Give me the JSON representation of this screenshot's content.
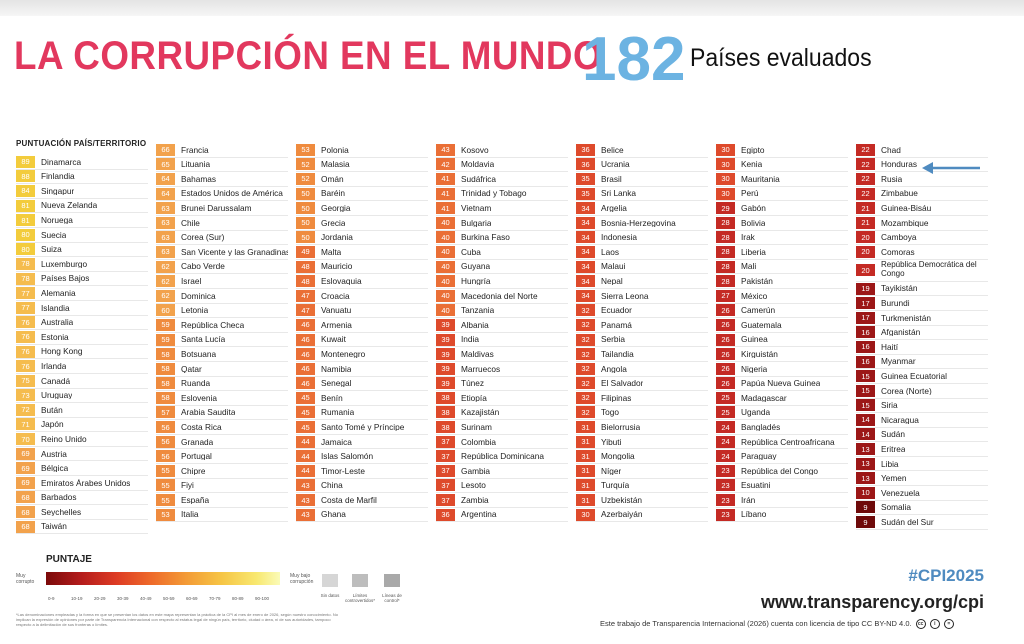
{
  "header": {
    "title": "LA CORRUPCIÓN EN EL MUNDO",
    "count": "182",
    "count_label": "Países evaluados"
  },
  "legend_header": "PUNTUACIÓN PAÍS/TERRITORIO",
  "columns": [
    [
      {
        "score": 89,
        "name": "Dinamarca"
      },
      {
        "score": 88,
        "name": "Finlandia"
      },
      {
        "score": 84,
        "name": "Singapur"
      },
      {
        "score": 81,
        "name": "Nueva Zelanda"
      },
      {
        "score": 81,
        "name": "Noruega"
      },
      {
        "score": 80,
        "name": "Suecia"
      },
      {
        "score": 80,
        "name": "Suiza"
      },
      {
        "score": 78,
        "name": "Luxemburgo"
      },
      {
        "score": 78,
        "name": "Países Bajos"
      },
      {
        "score": 77,
        "name": "Alemania"
      },
      {
        "score": 77,
        "name": "Islandia"
      },
      {
        "score": 76,
        "name": "Australia"
      },
      {
        "score": 76,
        "name": "Estonia"
      },
      {
        "score": 76,
        "name": "Hong Kong"
      },
      {
        "score": 76,
        "name": "Irlanda"
      },
      {
        "score": 75,
        "name": "Canadá"
      },
      {
        "score": 73,
        "name": "Uruguay"
      },
      {
        "score": 72,
        "name": "Bután"
      },
      {
        "score": 71,
        "name": "Japón"
      },
      {
        "score": 70,
        "name": "Reino Unido"
      },
      {
        "score": 69,
        "name": "Austria"
      },
      {
        "score": 69,
        "name": "Bélgica"
      },
      {
        "score": 69,
        "name": "Emiratos Árabes Unidos"
      },
      {
        "score": 68,
        "name": "Barbados"
      },
      {
        "score": 68,
        "name": "Seychelles"
      },
      {
        "score": 68,
        "name": "Taiwán"
      }
    ],
    [
      {
        "score": 66,
        "name": "Francia"
      },
      {
        "score": 65,
        "name": "Lituania"
      },
      {
        "score": 64,
        "name": "Bahamas"
      },
      {
        "score": 64,
        "name": "Estados Unidos de América"
      },
      {
        "score": 63,
        "name": "Brunei Darussalam"
      },
      {
        "score": 63,
        "name": "Chile"
      },
      {
        "score": 63,
        "name": "Corea (Sur)"
      },
      {
        "score": 63,
        "name": "San Vicente y las Granadinas"
      },
      {
        "score": 62,
        "name": "Cabo Verde"
      },
      {
        "score": 62,
        "name": "Israel"
      },
      {
        "score": 62,
        "name": "Dominica"
      },
      {
        "score": 60,
        "name": "Letonia"
      },
      {
        "score": 59,
        "name": "República Checa"
      },
      {
        "score": 59,
        "name": "Santa Lucía"
      },
      {
        "score": 58,
        "name": "Botsuana"
      },
      {
        "score": 58,
        "name": "Qatar"
      },
      {
        "score": 58,
        "name": "Ruanda"
      },
      {
        "score": 58,
        "name": "Eslovenia"
      },
      {
        "score": 57,
        "name": "Arabia Saudita"
      },
      {
        "score": 56,
        "name": "Costa Rica"
      },
      {
        "score": 56,
        "name": "Granada"
      },
      {
        "score": 56,
        "name": "Portugal"
      },
      {
        "score": 55,
        "name": "Chipre"
      },
      {
        "score": 55,
        "name": "Fiyi"
      },
      {
        "score": 55,
        "name": "España"
      },
      {
        "score": 53,
        "name": "Italia"
      }
    ],
    [
      {
        "score": 53,
        "name": "Polonia"
      },
      {
        "score": 52,
        "name": "Malasia"
      },
      {
        "score": 52,
        "name": "Omán"
      },
      {
        "score": 50,
        "name": "Baréin"
      },
      {
        "score": 50,
        "name": "Georgia"
      },
      {
        "score": 50,
        "name": "Grecia"
      },
      {
        "score": 50,
        "name": "Jordania"
      },
      {
        "score": 49,
        "name": "Malta"
      },
      {
        "score": 48,
        "name": "Mauricio"
      },
      {
        "score": 48,
        "name": "Eslovaquia"
      },
      {
        "score": 47,
        "name": "Croacia"
      },
      {
        "score": 47,
        "name": "Vanuatu"
      },
      {
        "score": 46,
        "name": "Armenia"
      },
      {
        "score": 46,
        "name": "Kuwait"
      },
      {
        "score": 46,
        "name": "Montenegro"
      },
      {
        "score": 46,
        "name": "Namibia"
      },
      {
        "score": 46,
        "name": "Senegal"
      },
      {
        "score": 45,
        "name": "Benín"
      },
      {
        "score": 45,
        "name": "Rumania"
      },
      {
        "score": 45,
        "name": "Santo Tomé y Príncipe"
      },
      {
        "score": 44,
        "name": "Jamaica"
      },
      {
        "score": 44,
        "name": "Islas Salomón"
      },
      {
        "score": 44,
        "name": "Timor-Leste"
      },
      {
        "score": 43,
        "name": "China"
      },
      {
        "score": 43,
        "name": "Costa de Marfil"
      },
      {
        "score": 43,
        "name": "Ghana"
      }
    ],
    [
      {
        "score": 43,
        "name": "Kosovo"
      },
      {
        "score": 42,
        "name": "Moldavia"
      },
      {
        "score": 41,
        "name": "Sudáfrica"
      },
      {
        "score": 41,
        "name": "Trinidad y Tobago"
      },
      {
        "score": 41,
        "name": "Vietnam"
      },
      {
        "score": 40,
        "name": "Bulgaria"
      },
      {
        "score": 40,
        "name": "Burkina Faso"
      },
      {
        "score": 40,
        "name": "Cuba"
      },
      {
        "score": 40,
        "name": "Guyana"
      },
      {
        "score": 40,
        "name": "Hungría"
      },
      {
        "score": 40,
        "name": "Macedonia del Norte"
      },
      {
        "score": 40,
        "name": "Tanzania"
      },
      {
        "score": 39,
        "name": "Albania"
      },
      {
        "score": 39,
        "name": "India"
      },
      {
        "score": 39,
        "name": "Maldivas"
      },
      {
        "score": 39,
        "name": "Marruecos"
      },
      {
        "score": 39,
        "name": "Túnez"
      },
      {
        "score": 38,
        "name": "Etiopía"
      },
      {
        "score": 38,
        "name": "Kazajistán"
      },
      {
        "score": 38,
        "name": "Surinam"
      },
      {
        "score": 37,
        "name": "Colombia"
      },
      {
        "score": 37,
        "name": "República Dominicana"
      },
      {
        "score": 37,
        "name": "Gambia"
      },
      {
        "score": 37,
        "name": "Lesoto"
      },
      {
        "score": 37,
        "name": "Zambia"
      },
      {
        "score": 36,
        "name": "Argentina"
      }
    ],
    [
      {
        "score": 36,
        "name": "Belice"
      },
      {
        "score": 36,
        "name": "Ucrania"
      },
      {
        "score": 35,
        "name": "Brasil"
      },
      {
        "score": 35,
        "name": "Sri Lanka"
      },
      {
        "score": 34,
        "name": "Argelia"
      },
      {
        "score": 34,
        "name": "Bosnia-Herzegovina"
      },
      {
        "score": 34,
        "name": "Indonesia"
      },
      {
        "score": 34,
        "name": "Laos"
      },
      {
        "score": 34,
        "name": "Malaui"
      },
      {
        "score": 34,
        "name": "Nepal"
      },
      {
        "score": 34,
        "name": "Sierra Leona"
      },
      {
        "score": 32,
        "name": "Ecuador"
      },
      {
        "score": 32,
        "name": "Panamá"
      },
      {
        "score": 32,
        "name": "Serbia"
      },
      {
        "score": 32,
        "name": "Tailandia"
      },
      {
        "score": 32,
        "name": "Angola"
      },
      {
        "score": 32,
        "name": "El Salvador"
      },
      {
        "score": 32,
        "name": "Filipinas"
      },
      {
        "score": 32,
        "name": "Togo"
      },
      {
        "score": 31,
        "name": "Bielorrusia"
      },
      {
        "score": 31,
        "name": "Yibuti"
      },
      {
        "score": 31,
        "name": "Mongolia"
      },
      {
        "score": 31,
        "name": "Níger"
      },
      {
        "score": 31,
        "name": "Turquía"
      },
      {
        "score": 31,
        "name": "Uzbekistán"
      },
      {
        "score": 30,
        "name": "Azerbaiyán"
      }
    ],
    [
      {
        "score": 30,
        "name": "Egipto"
      },
      {
        "score": 30,
        "name": "Kenia"
      },
      {
        "score": 30,
        "name": "Mauritania"
      },
      {
        "score": 30,
        "name": "Perú"
      },
      {
        "score": 29,
        "name": "Gabón"
      },
      {
        "score": 28,
        "name": "Bolivia"
      },
      {
        "score": 28,
        "name": "Irak"
      },
      {
        "score": 28,
        "name": "Liberia"
      },
      {
        "score": 28,
        "name": "Mali"
      },
      {
        "score": 28,
        "name": "Pakistán"
      },
      {
        "score": 27,
        "name": "México"
      },
      {
        "score": 26,
        "name": "Camerún"
      },
      {
        "score": 26,
        "name": "Guatemala"
      },
      {
        "score": 26,
        "name": "Guinea"
      },
      {
        "score": 26,
        "name": "Kirguistán"
      },
      {
        "score": 26,
        "name": "Nigeria"
      },
      {
        "score": 26,
        "name": "Papúa Nueva Guinea"
      },
      {
        "score": 25,
        "name": "Madagascar"
      },
      {
        "score": 25,
        "name": "Uganda"
      },
      {
        "score": 24,
        "name": "Bangladés"
      },
      {
        "score": 24,
        "name": "República Centroafricana"
      },
      {
        "score": 24,
        "name": "Paraguay"
      },
      {
        "score": 23,
        "name": "República del Congo"
      },
      {
        "score": 23,
        "name": "Esuatini"
      },
      {
        "score": 23,
        "name": "Irán"
      },
      {
        "score": 23,
        "name": "Líbano"
      }
    ],
    [
      {
        "score": 22,
        "name": "Chad"
      },
      {
        "score": 22,
        "name": "Honduras"
      },
      {
        "score": 22,
        "name": "Rusia"
      },
      {
        "score": 22,
        "name": "Zimbabue"
      },
      {
        "score": 21,
        "name": "Guinea-Bisáu"
      },
      {
        "score": 21,
        "name": "Mozambique"
      },
      {
        "score": 20,
        "name": "Camboya"
      },
      {
        "score": 20,
        "name": "Comoras"
      },
      {
        "score": 20,
        "name": "República Democrática del Congo",
        "tall": true
      },
      {
        "score": 19,
        "name": "Tayikistán"
      },
      {
        "score": 17,
        "name": "Burundi"
      },
      {
        "score": 17,
        "name": "Turkmenistán"
      },
      {
        "score": 16,
        "name": "Afganistán"
      },
      {
        "score": 16,
        "name": "Haití"
      },
      {
        "score": 16,
        "name": "Myanmar"
      },
      {
        "score": 15,
        "name": "Guinea Ecuatorial"
      },
      {
        "score": 15,
        "name": "Corea (Norte)"
      },
      {
        "score": 15,
        "name": "Siria"
      },
      {
        "score": 14,
        "name": "Nicaragua"
      },
      {
        "score": 14,
        "name": "Sudán"
      },
      {
        "score": 13,
        "name": "Eritrea"
      },
      {
        "score": 13,
        "name": "Libia"
      },
      {
        "score": 13,
        "name": "Yemen"
      },
      {
        "score": 10,
        "name": "Venezuela"
      },
      {
        "score": 9,
        "name": "Somalia"
      },
      {
        "score": 9,
        "name": "Sudán del Sur"
      }
    ]
  ],
  "highlighted_country": "Honduras",
  "legend": {
    "title": "PUNTAJE",
    "low_label": "Muy corrupto",
    "high_label": "Muy bajo corrupción",
    "ticks": [
      "0-9",
      "10-19",
      "20-29",
      "30-39",
      "40-49",
      "50-59",
      "60-69",
      "70-79",
      "80-89",
      "90-100"
    ],
    "swatches": [
      "Sin datos",
      "Límites controvertidos*",
      "Líneas de control*"
    ],
    "colors": [
      "#7b0a0a",
      "#b41c1c",
      "#dd3b24",
      "#ee6a2a",
      "#f39b36",
      "#f6c545",
      "#f8e870",
      "#fafbb8"
    ]
  },
  "footnote": "*Las denominaciones empleadas y la forma en que se presentan los datos en este mapa representan la práctica de la CPI al mes de enero de 2026, según nuestro conocimiento. No implican la expresión de opiniones por parte de Transparencia Internacional con respecto al estatus legal de ningún país, territorio, ciudad o área, ni de sus autoridades, tampoco respecto a la delimitación de sus fronteras o límites.",
  "footer": {
    "hashtag": "#CPI2025",
    "url": "www.transparency.org/cpi",
    "license": "Este trabajo de Transparencia Internacional (2026) cuenta con licencia de tipo CC BY-ND 4.0."
  }
}
